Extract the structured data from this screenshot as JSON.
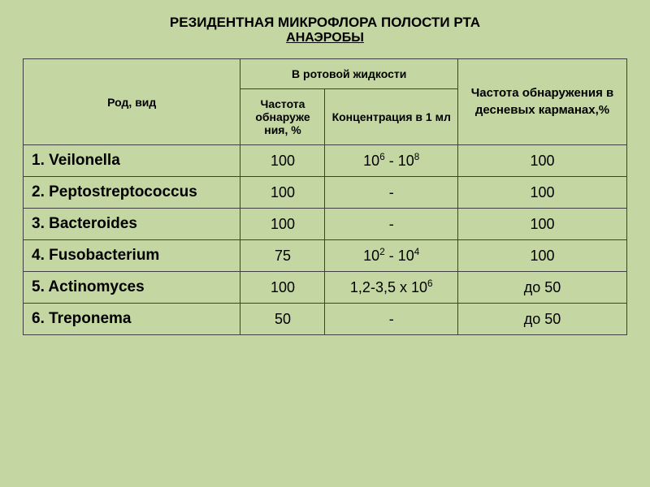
{
  "colors": {
    "background": "#c4d6a2",
    "border": "#3f3f3f",
    "text": "#000000"
  },
  "titles": {
    "line1": "РЕЗИДЕНТНАЯ МИКРОФЛОРА ПОЛОСТИ РТА",
    "line2": "АНАЭРОБЫ"
  },
  "headers": {
    "species": "Род, вид",
    "oral_group": "В ротовой жидкости",
    "freq": "Частота обнаруже ния, %",
    "conc": "Концентрация в 1 мл",
    "gingival": "Частота обнаружения в десневых карманах,%"
  },
  "table": {
    "column_align": [
      "left",
      "center",
      "center",
      "center"
    ],
    "data_font_size": 18,
    "header_font_size": 14
  },
  "rows": [
    {
      "species": "1. Veilonella",
      "freq": "100",
      "conc_html": "10<sup>6</sup>  - 10<sup>8</sup>",
      "ging": "100"
    },
    {
      "species": "2. Peptostreptococcus",
      "freq": "100",
      "conc_html": "-",
      "ging": "100"
    },
    {
      "species": "3. Bacteroides",
      "freq": "100",
      "conc_html": "-",
      "ging": "100"
    },
    {
      "species": "4. Fusobacterium",
      "freq": "75",
      "conc_html": "10<sup>2</sup>  - 10<sup>4</sup>",
      "ging": "100"
    },
    {
      "species": "5. Actinomyces",
      "freq": "100",
      "conc_html": "1,2-3,5 х 10<sup>6</sup>",
      "ging": "до 50"
    },
    {
      "species": "6. Treponema",
      "freq": "50",
      "conc_html": "-",
      "ging": "до 50"
    }
  ]
}
